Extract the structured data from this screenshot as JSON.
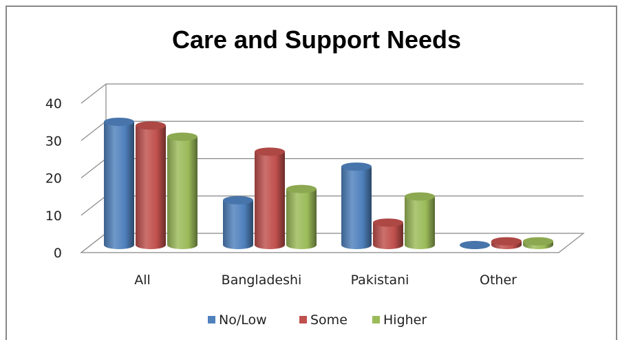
{
  "chart_data": {
    "type": "bar",
    "title": "Care and Support Needs",
    "categories": [
      "All",
      "Bangladeshi",
      "Pakistani",
      "Other"
    ],
    "series": [
      {
        "name": "No/Low",
        "values": [
          33,
          12,
          21,
          0
        ],
        "color": "#4f81bd"
      },
      {
        "name": "Some",
        "values": [
          32,
          25,
          6,
          1
        ],
        "color": "#c0504d"
      },
      {
        "name": "Higher",
        "values": [
          29,
          15,
          13,
          1
        ],
        "color": "#9bbb59"
      }
    ],
    "yticks": [
      "0",
      "10",
      "20",
      "30",
      "40"
    ],
    "ylim": [
      0,
      40
    ],
    "grid": true,
    "legend": "bottom",
    "style": "3d-cylinder"
  }
}
